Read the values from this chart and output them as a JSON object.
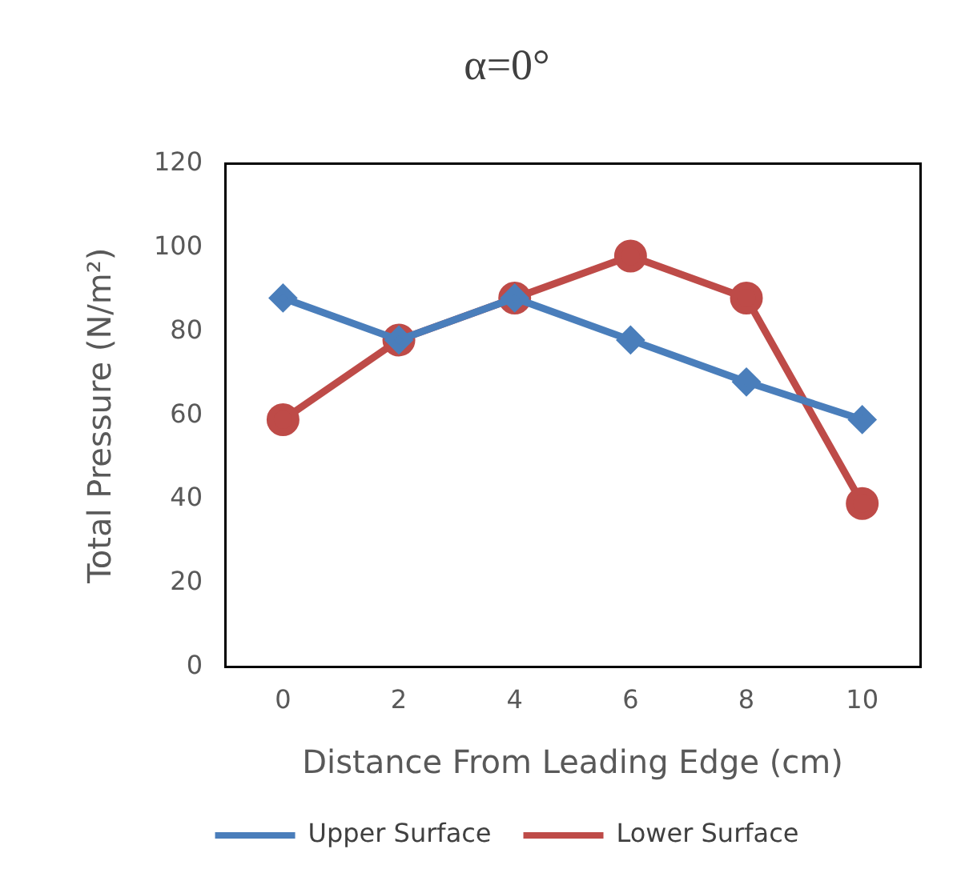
{
  "chart_data": {
    "type": "line",
    "title": "α=0°",
    "xlabel": "Distance From Leading Edge (cm)",
    "ylabel": "Total Pressure (N/m²)",
    "categories": [
      "0",
      "2",
      "4",
      "6",
      "8",
      "10"
    ],
    "series": [
      {
        "name": "Upper Surface",
        "color": "#4a7ebb",
        "marker": "diamond",
        "values": [
          88,
          78,
          88,
          78,
          68,
          59
        ]
      },
      {
        "name": "Lower Surface",
        "color": "#be4b48",
        "marker": "circle",
        "values": [
          59,
          78,
          88,
          98,
          88,
          39
        ]
      }
    ],
    "ylim": [
      0,
      120
    ],
    "yticks": [
      0,
      20,
      40,
      60,
      80,
      100,
      120
    ],
    "grid": false,
    "legend": "bottom",
    "line_style": "solid"
  }
}
